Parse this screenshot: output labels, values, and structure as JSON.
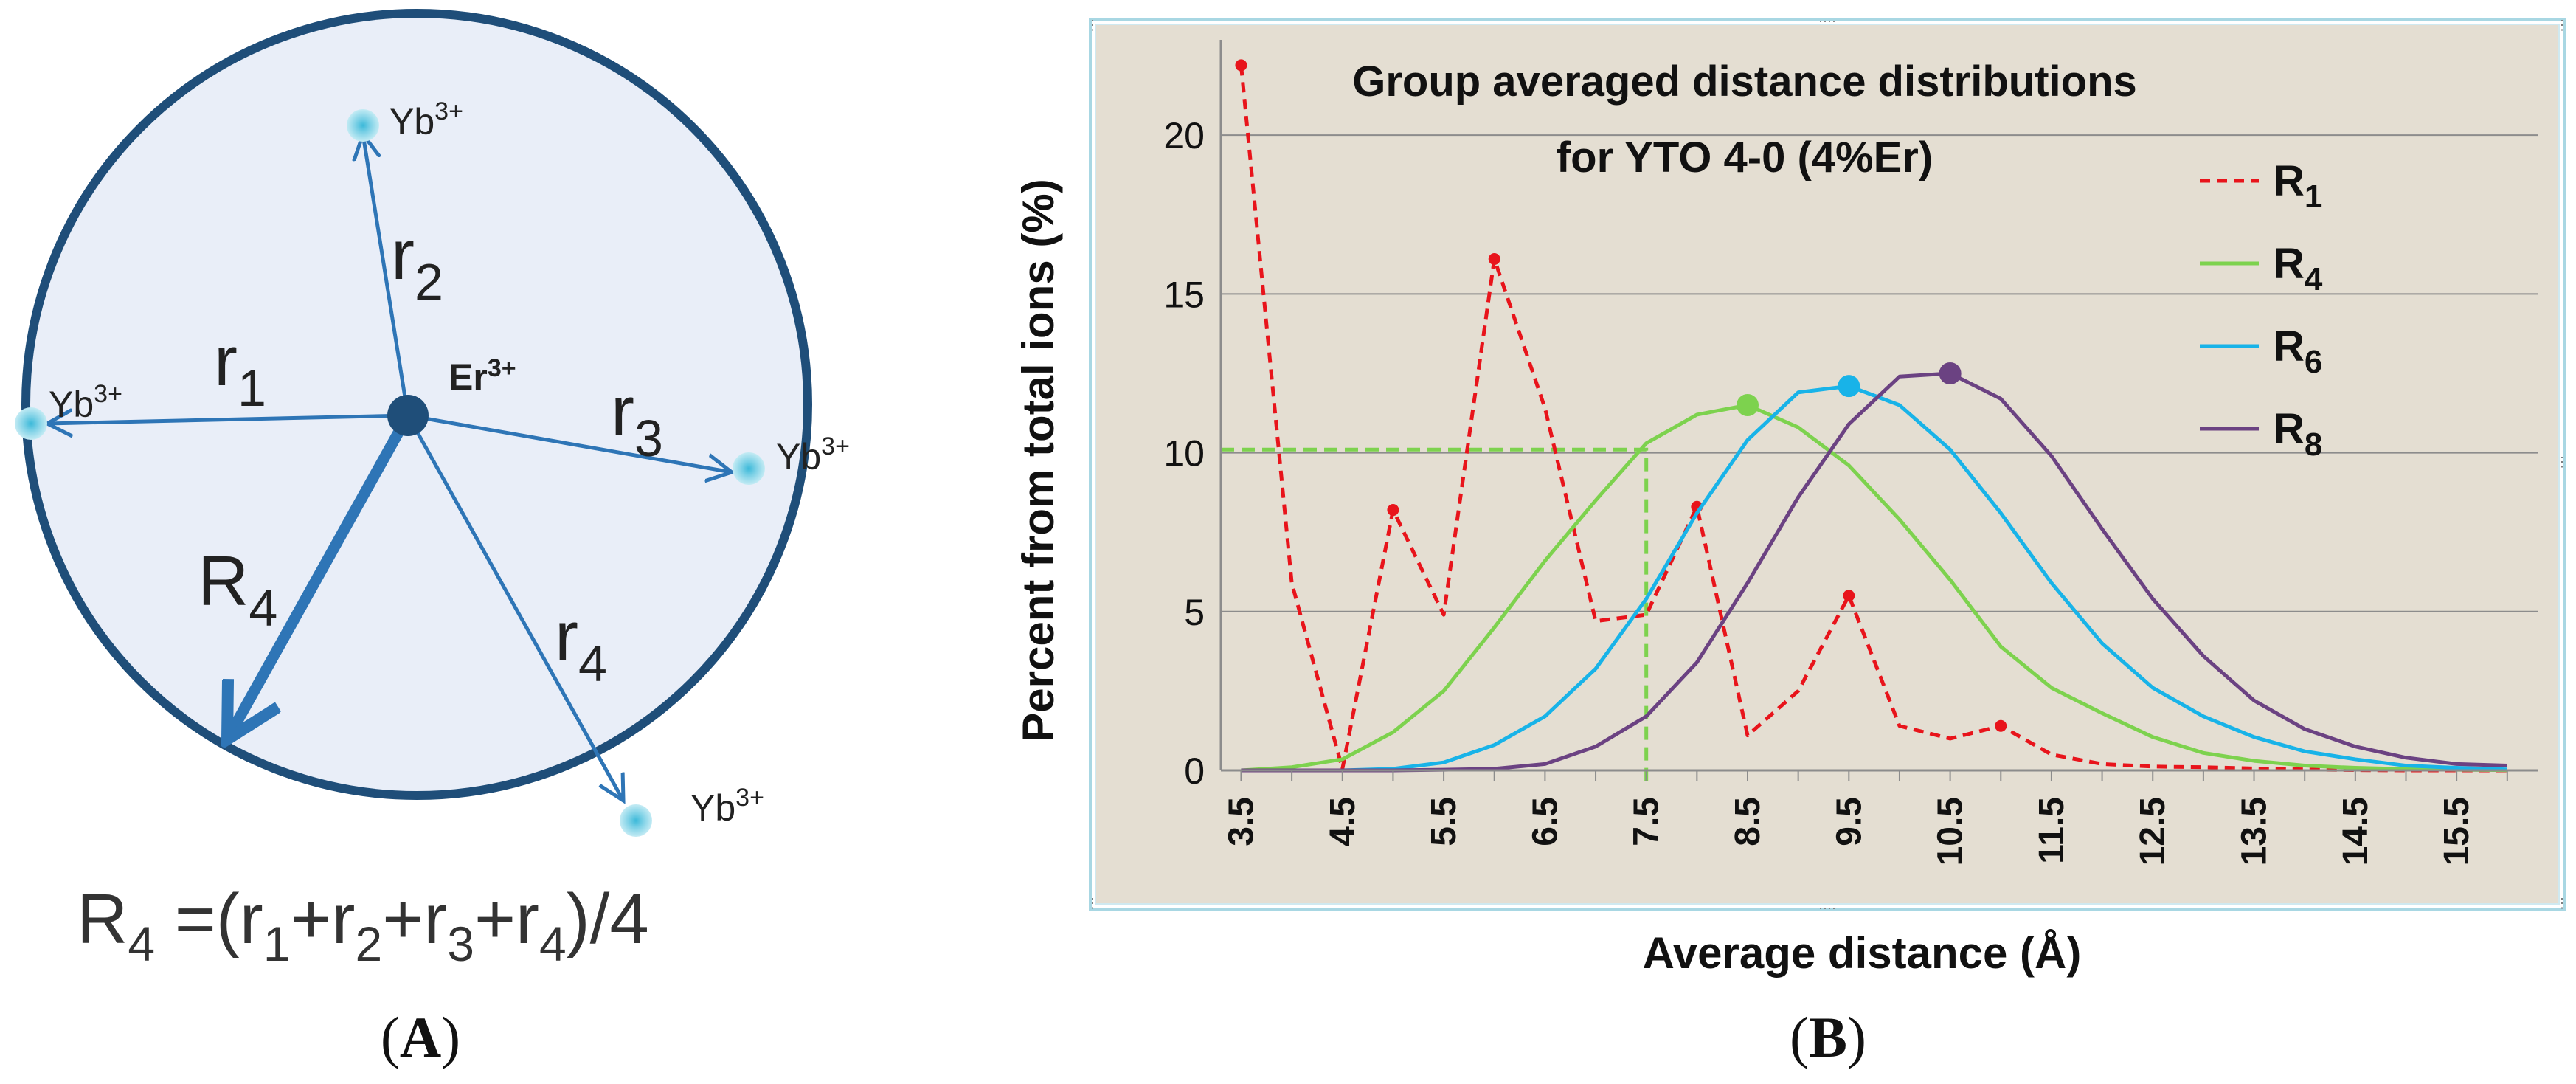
{
  "panel_a": {
    "center_label": "Er",
    "center_label_sup": "3+",
    "ions": [
      {
        "label": "Yb",
        "sup": "3+"
      },
      {
        "label": "Yb",
        "sup": "3+"
      },
      {
        "label": "Yb",
        "sup": "3+"
      },
      {
        "label": "Yb",
        "sup": "3+"
      }
    ],
    "vectors": [
      {
        "letter": "r",
        "sub": "1"
      },
      {
        "letter": "r",
        "sub": "2"
      },
      {
        "letter": "r",
        "sub": "3"
      },
      {
        "letter": "r",
        "sub": "4"
      },
      {
        "letter": "R",
        "sub": "4"
      }
    ],
    "formula": {
      "lhs": "R",
      "lhs_sub": "4",
      "eq": " =(",
      "t1": "r",
      "s1": "1",
      "t2": "+r",
      "s2": "2",
      "t3": "+r",
      "s3": "3",
      "t4": "+r",
      "s4": "4",
      "tail": ")/4"
    },
    "caption_open": "(",
    "caption_letter": "A",
    "caption_close": ")"
  },
  "panel_b": {
    "caption_open": "(",
    "caption_letter": "B",
    "caption_close": ")"
  },
  "chart_data": {
    "type": "line",
    "title": "Group averaged distance distributions",
    "subtitle": "for YTO 4-0 (4%Er)",
    "xlabel": "Average distance (Å)",
    "ylabel": "Percent from total ions (%)",
    "ylim": [
      0,
      23
    ],
    "yticks": [
      "0",
      "5",
      "10",
      "15",
      "20"
    ],
    "xlim": [
      3.3,
      16.3
    ],
    "xticks": [
      "3.5",
      "4.5",
      "5.5",
      "6.5",
      "7.5",
      "8.5",
      "9.5",
      "10.5",
      "11.5",
      "12.5",
      "13.5",
      "14.5",
      "15.5"
    ],
    "grid": "horizontal",
    "legend_position": "right",
    "background": "#e4ded2",
    "series": [
      {
        "name": "R",
        "name_sub": "1",
        "color": "#e8141b",
        "dash": "dashed",
        "x": [
          3.5,
          4.0,
          4.5,
          5.0,
          5.5,
          6.0,
          6.5,
          7.0,
          7.5,
          8.0,
          8.5,
          9.0,
          9.5,
          10.0,
          10.5,
          11.0,
          11.5,
          12.0,
          12.5,
          13.0,
          13.5,
          14.0,
          14.5,
          15.0,
          15.5,
          16.0
        ],
        "y": [
          22.2,
          5.9,
          0.05,
          8.2,
          4.9,
          16.1,
          11.4,
          4.7,
          4.9,
          8.3,
          1.1,
          2.5,
          5.5,
          1.4,
          1.0,
          1.4,
          0.5,
          0.2,
          0.12,
          0.1,
          0.06,
          0.03,
          0.01,
          0.0,
          0.0,
          0.0
        ],
        "markers": [
          [
            3.5,
            22.2
          ],
          [
            5.0,
            8.2
          ],
          [
            6.0,
            16.1
          ],
          [
            8.0,
            8.3
          ],
          [
            9.5,
            5.5
          ],
          [
            11.0,
            1.4
          ]
        ],
        "marker_size": "small"
      },
      {
        "name": "R",
        "name_sub": "4",
        "color": "#7dd24e",
        "dash": "solid",
        "x": [
          3.5,
          4.0,
          4.5,
          5.0,
          5.5,
          6.0,
          6.5,
          7.0,
          7.5,
          8.0,
          8.5,
          9.0,
          9.5,
          10.0,
          10.5,
          11.0,
          11.5,
          12.0,
          12.5,
          13.0,
          13.5,
          14.0,
          14.5,
          15.0,
          15.5,
          16.0
        ],
        "y": [
          0.0,
          0.1,
          0.35,
          1.2,
          2.5,
          4.5,
          6.6,
          8.5,
          10.3,
          11.2,
          11.5,
          10.8,
          9.6,
          7.9,
          6.0,
          3.9,
          2.6,
          1.8,
          1.05,
          0.55,
          0.3,
          0.15,
          0.08,
          0.04,
          0.02,
          0.01
        ],
        "markers": [
          [
            8.5,
            11.5
          ]
        ],
        "marker_size": "large"
      },
      {
        "name": "R",
        "name_sub": "6",
        "color": "#18b3e8",
        "dash": "solid",
        "x": [
          3.5,
          4.0,
          4.5,
          5.0,
          5.5,
          6.0,
          6.5,
          7.0,
          7.5,
          8.0,
          8.5,
          9.0,
          9.5,
          10.0,
          10.5,
          11.0,
          11.5,
          12.0,
          12.5,
          13.0,
          13.5,
          14.0,
          14.5,
          15.0,
          15.5,
          16.0
        ],
        "y": [
          0.0,
          0.0,
          0.0,
          0.05,
          0.25,
          0.8,
          1.7,
          3.2,
          5.4,
          8.1,
          10.4,
          11.9,
          12.1,
          11.5,
          10.1,
          8.1,
          5.9,
          4.0,
          2.6,
          1.7,
          1.05,
          0.6,
          0.35,
          0.15,
          0.08,
          0.03
        ],
        "markers": [
          [
            9.5,
            12.1
          ]
        ],
        "marker_size": "large"
      },
      {
        "name": "R",
        "name_sub": "8",
        "color": "#6b4282",
        "dash": "solid",
        "x": [
          3.5,
          4.0,
          4.5,
          5.0,
          5.5,
          6.0,
          6.5,
          7.0,
          7.5,
          8.0,
          8.5,
          9.0,
          9.5,
          10.0,
          10.5,
          11.0,
          11.5,
          12.0,
          12.5,
          13.0,
          13.5,
          14.0,
          14.5,
          15.0,
          15.5,
          16.0
        ],
        "y": [
          0.0,
          0.0,
          0.0,
          0.0,
          0.02,
          0.05,
          0.2,
          0.75,
          1.7,
          3.4,
          5.9,
          8.6,
          10.9,
          12.4,
          12.5,
          11.7,
          9.9,
          7.6,
          5.4,
          3.6,
          2.2,
          1.3,
          0.75,
          0.4,
          0.2,
          0.15
        ],
        "markers": [
          [
            10.5,
            12.5
          ]
        ],
        "marker_size": "large"
      }
    ],
    "annotation": {
      "type": "dashed-guide",
      "color": "#7dd24e",
      "x": 7.5,
      "y": 10.1
    }
  }
}
